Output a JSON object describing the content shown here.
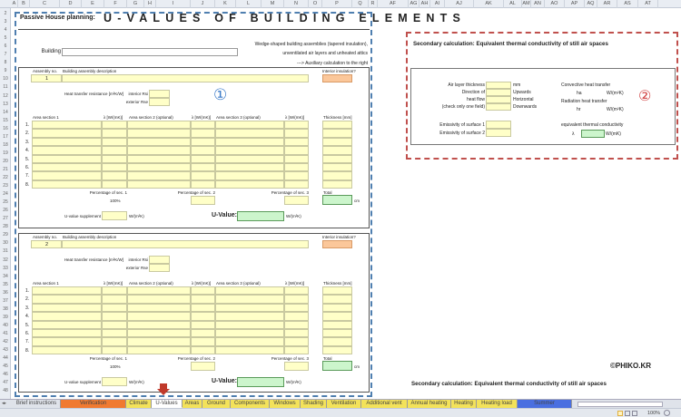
{
  "columns": [
    [
      "A",
      12,
      20
    ],
    [
      "B",
      20,
      33
    ],
    [
      "C",
      33,
      66
    ],
    [
      "D",
      66,
      90
    ],
    [
      "E",
      90,
      115
    ],
    [
      "F",
      115,
      140
    ],
    [
      "G",
      140,
      159
    ],
    [
      "H",
      159,
      172
    ],
    [
      "I",
      172,
      210
    ],
    [
      "J",
      210,
      237
    ],
    [
      "K",
      237,
      260
    ],
    [
      "L",
      260,
      288
    ],
    [
      "M",
      288,
      313
    ],
    [
      "N",
      313,
      340
    ],
    [
      "O",
      340,
      355
    ],
    [
      "P",
      355,
      388
    ],
    [
      "Q",
      388,
      406
    ],
    [
      "R",
      406,
      416
    ],
    [
      "AF",
      416,
      450
    ],
    [
      "AG",
      450,
      462
    ],
    [
      "AH",
      462,
      474
    ],
    [
      "AI",
      474,
      490
    ],
    [
      "AJ",
      490,
      522
    ],
    [
      "AK",
      522,
      555
    ],
    [
      "AL",
      555,
      575
    ],
    [
      "AM",
      575,
      585
    ],
    [
      "AN",
      585,
      600
    ],
    [
      "AO",
      600,
      622
    ],
    [
      "AP",
      622,
      644
    ],
    [
      "AQ",
      644,
      658
    ],
    [
      "AR",
      658,
      680
    ],
    [
      "AS",
      680,
      703
    ],
    [
      "AT",
      703,
      725
    ]
  ],
  "rows": [
    "2",
    "3",
    "4",
    "5",
    "6",
    "7",
    "8",
    "9",
    "10",
    "11",
    "12",
    "13",
    "14",
    "15",
    "16",
    "17",
    "18",
    "19",
    "20",
    "21",
    "22",
    "23",
    "24",
    "25",
    "26",
    "27",
    "28",
    "29",
    "30",
    "31",
    "32",
    "33",
    "34",
    "35",
    "36",
    "37",
    "38",
    "39",
    "40",
    "41",
    "42",
    "43",
    "44",
    "45",
    "46",
    "47",
    "48"
  ],
  "header": {
    "subtitle": "Passive House planning:",
    "title": "U-VALUES OF BUILDING ELEMENTS"
  },
  "building": {
    "label": "Building",
    "value": ""
  },
  "notes": [
    "Wedge-shaped building assemblies (tapered insulation),",
    "unventilated air layers and unheated attics",
    "---> Auxiliary calculation to the right"
  ],
  "assembly_labels": {
    "no": "Assembly no.",
    "desc": "Building assembly description",
    "interior_insulation": "Interior insulation?",
    "htr": "Heat transfer resistance [m²K/W]",
    "interior_r": "interior Rsi",
    "exterior_r": "exterior Rse",
    "area1": "Area section 1",
    "lambda": "λ [W/(mK)]",
    "area2": "Area section 2 (optional)",
    "area3": "Area section 3 (optional)",
    "thickness": "Thickness [mm]",
    "pct1": "Percentage of sec. 1",
    "pct2": "Percentage of sec. 2",
    "pct3": "Percentage of sec. 3",
    "total": "Total",
    "pct1_value": "100%",
    "cm": "cm",
    "supplement": "U-value supplement",
    "unit_u": "W/(m²K)",
    "uvalue": "U-Value:",
    "layer_numbers": [
      "1.",
      "2.",
      "3.",
      "4.",
      "5.",
      "6.",
      "7.",
      "8."
    ]
  },
  "assemblies": [
    {
      "number": "1",
      "marker": "①"
    },
    {
      "number": "2",
      "marker": ""
    }
  ],
  "secondary": {
    "title": "Secondary calculation: Equivalent thermal conductivity of still air spaces",
    "marker": "②",
    "left_labels": [
      "Air layer thickness",
      "Direction of",
      "heat flow",
      "(check only one field)"
    ],
    "options": [
      "mm",
      "Upwards",
      "Horizontal",
      "Downwards"
    ],
    "convective": "Convective heat transfer",
    "ha": "ha",
    "unit": "W/(m²K)",
    "radiation": "Radiation heat transfer",
    "hr": "hr",
    "emissivity1": "Emissivity of surface 1",
    "emissivity2": "Emissivity of surface 2",
    "equiv": "equivalent thermal conductivity",
    "lambda": "λ",
    "unit_lambda": "W/(mK)"
  },
  "watermark": "©PHIKO.KR",
  "tabs": [
    {
      "label": "Brief instructions",
      "color": "#dfe3ea",
      "x": [
        14,
        67
      ]
    },
    {
      "label": "Verification",
      "color": "#f07a30",
      "x": [
        67,
        139
      ]
    },
    {
      "label": "Climate",
      "color": "#f3e25a",
      "x": [
        139,
        167
      ]
    },
    {
      "label": "U-Values",
      "color": "#ffffff",
      "x": [
        167,
        201
      ],
      "active": true
    },
    {
      "label": "Areas",
      "color": "#f3e25a",
      "x": [
        201,
        223
      ]
    },
    {
      "label": "Ground",
      "color": "#f3e25a",
      "x": [
        223,
        254
      ]
    },
    {
      "label": "Components",
      "color": "#f3e25a",
      "x": [
        254,
        297
      ]
    },
    {
      "label": "Windows",
      "color": "#f3e25a",
      "x": [
        297,
        331
      ]
    },
    {
      "label": "Shading",
      "color": "#f3e25a",
      "x": [
        331,
        360
      ]
    },
    {
      "label": "Ventilation",
      "color": "#f3e25a",
      "x": [
        360,
        398
      ]
    },
    {
      "label": "Additional vent",
      "color": "#f3e25a",
      "x": [
        398,
        449
      ]
    },
    {
      "label": "Annual heating",
      "color": "#f3e25a",
      "x": [
        449,
        497
      ]
    },
    {
      "label": "Heating",
      "color": "#f3e25a",
      "x": [
        497,
        525
      ]
    },
    {
      "label": "Heating load",
      "color": "#f3e25a",
      "x": [
        525,
        570
      ]
    },
    {
      "label": "Summer",
      "color": "#4a6fe0",
      "x": [
        570,
        630
      ]
    }
  ],
  "status": {
    "zoom": "100%"
  }
}
